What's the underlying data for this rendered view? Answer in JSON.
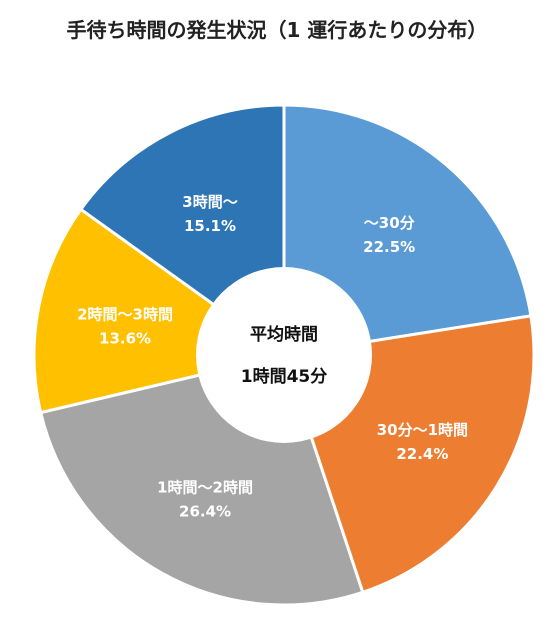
{
  "chart_data": {
    "type": "pie",
    "title": "手待ち時間の発生状況（1 運行あたりの分布）",
    "center_label": [
      "平均時間",
      "1時間45分"
    ],
    "categories": [
      "～30分",
      "30分～1時間",
      "1時間～2時間",
      "2時間～3時間",
      "3時間～"
    ],
    "values": [
      22.5,
      22.4,
      26.4,
      13.6,
      15.1
    ],
    "value_labels": [
      "22.5%",
      "22.4%",
      "26.4%",
      "13.6%",
      "15.1%"
    ],
    "colors": [
      "#5B9BD5",
      "#ED7D31",
      "#A5A5A5",
      "#FFC000",
      "#2E75B6"
    ],
    "style": "donut",
    "start": "12 o'clock, clockwise"
  }
}
